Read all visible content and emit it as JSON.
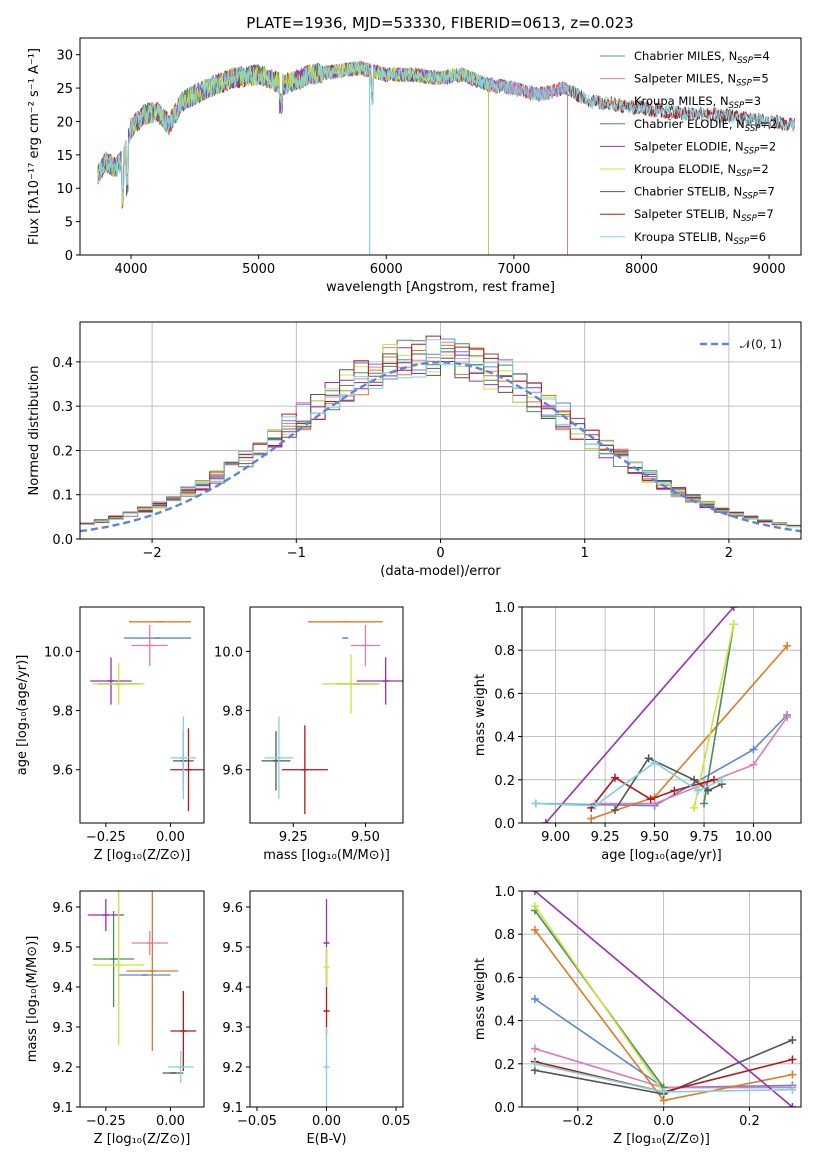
{
  "figure_title": "PLATE=1936, MJD=53330, FIBERID=0613, z=0.023",
  "colors": {
    "Chabrier MILES": "#5b86d6",
    "Salpeter MILES": "#e27bb7",
    "Kroupa MILES": "#e07b1f",
    "Chabrier ELODIE": "#4f8a55",
    "Salpeter ELODIE": "#9b2fb5",
    "Kroupa ELODIE": "#c7e43f",
    "Chabrier STELIB": "#555555",
    "Salpeter STELIB": "#b2191c",
    "Kroupa STELIB": "#7fd3de"
  },
  "chart_data": [
    {
      "id": "spectrum",
      "type": "line",
      "title": "PLATE=1936, MJD=53330, FIBERID=0613, z=0.023",
      "xlabel": "wavelength [Angstrom, rest frame]",
      "ylabel": "Flux [fλ10⁻¹⁷ erg cm⁻² s⁻¹ A⁻¹]",
      "xlim": [
        3600,
        9250
      ],
      "ylim": [
        0,
        32.5
      ],
      "xticks": [
        "4000",
        "5000",
        "6000",
        "7000",
        "8000",
        "9000"
      ],
      "yticks": [
        "0",
        "5",
        "10",
        "15",
        "20",
        "25",
        "30"
      ],
      "legend": "top-right",
      "continuum": [
        [
          3740,
          12
        ],
        [
          3800,
          14
        ],
        [
          3880,
          13
        ],
        [
          3950,
          15
        ],
        [
          4000,
          19
        ],
        [
          4100,
          21
        ],
        [
          4200,
          21.5
        ],
        [
          4300,
          19.5
        ],
        [
          4400,
          23
        ],
        [
          4600,
          25
        ],
        [
          4800,
          26.5
        ],
        [
          5000,
          27
        ],
        [
          5200,
          25.5
        ],
        [
          5400,
          27
        ],
        [
          5600,
          27.5
        ],
        [
          5800,
          28
        ],
        [
          6000,
          27
        ],
        [
          6200,
          27
        ],
        [
          6400,
          26.5
        ],
        [
          6600,
          27
        ],
        [
          6800,
          25.5
        ],
        [
          7000,
          25
        ],
        [
          7200,
          24
        ],
        [
          7400,
          25
        ],
        [
          7600,
          23
        ],
        [
          7800,
          22.5
        ],
        [
          8000,
          22
        ],
        [
          8200,
          21.5
        ],
        [
          8400,
          21
        ],
        [
          8600,
          21
        ],
        [
          8800,
          20.5
        ],
        [
          9000,
          20
        ],
        [
          9200,
          19.5
        ]
      ],
      "series": [
        {
          "name": "Chabrier MILES, N_SSP=4",
          "n": "4"
        },
        {
          "name": "Salpeter MILES, N_SSP=5",
          "n": "5"
        },
        {
          "name": "Kroupa MILES, N_SSP=3",
          "n": "3"
        },
        {
          "name": "Chabrier ELODIE, N_SSP=2",
          "n": "2"
        },
        {
          "name": "Salpeter ELODIE, N_SSP=2",
          "n": "2"
        },
        {
          "name": "Kroupa ELODIE, N_SSP=2",
          "n": "2"
        },
        {
          "name": "Chabrier STELIB, N_SSP=7",
          "n": "7"
        },
        {
          "name": "Salpeter STELIB, N_SSP=7",
          "n": "7"
        },
        {
          "name": "Kroupa STELIB, N_SSP=6",
          "n": "6"
        }
      ]
    },
    {
      "id": "residuals",
      "type": "line",
      "xlabel": "(data-model)/error",
      "ylabel": "Normed distribution",
      "xlim": [
        -2.5,
        2.5
      ],
      "ylim": [
        0,
        0.49
      ],
      "xticks": [
        "−2",
        "−1",
        "0",
        "1",
        "2"
      ],
      "yticks": [
        "0.0",
        "0.1",
        "0.2",
        "0.3",
        "0.4"
      ],
      "legend_label": "𝒩(0, 1)",
      "bin_width": 0.1,
      "grid": true
    },
    {
      "id": "age_vs_Z",
      "type": "scatter",
      "xlabel": "Z [log₁₀(Z/Z⊙)]",
      "ylabel": "age  [log₁₀(age/yr)]",
      "xlim": [
        -0.35,
        0.13
      ],
      "ylim": [
        9.42,
        10.15
      ],
      "xticks": [
        "−0.25",
        "0.00"
      ],
      "xtick_values": [
        -0.25,
        0.0
      ],
      "yticks": [
        "9.6",
        "9.8",
        "10.0"
      ],
      "ytick_values": [
        9.6,
        9.8,
        10.0
      ],
      "points": [
        {
          "series": "Chabrier MILES",
          "x": -0.05,
          "xerr": 0.13,
          "y": 10.045,
          "yerr": 0.0
        },
        {
          "series": "Salpeter MILES",
          "x": -0.08,
          "xerr": 0.07,
          "y": 10.02,
          "yerr": 0.07
        },
        {
          "series": "Kroupa MILES",
          "x": -0.04,
          "xerr": 0.12,
          "y": 10.1,
          "yerr": 0.0
        },
        {
          "series": "Chabrier ELODIE",
          "x": -0.2,
          "xerr": 0.08,
          "y": 9.89,
          "yerr": 0.0
        },
        {
          "series": "Salpeter ELODIE",
          "x": -0.23,
          "xerr": 0.08,
          "y": 9.9,
          "yerr": 0.08
        },
        {
          "series": "Kroupa ELODIE",
          "x": -0.2,
          "xerr": 0.1,
          "y": 9.89,
          "yerr": 0.07
        },
        {
          "series": "Chabrier STELIB",
          "x": 0.05,
          "xerr": 0.04,
          "y": 9.63,
          "yerr": 0.1
        },
        {
          "series": "Salpeter STELIB",
          "x": 0.07,
          "xerr": 0.07,
          "y": 9.6,
          "yerr": 0.14
        },
        {
          "series": "Kroupa STELIB",
          "x": 0.05,
          "xerr": 0.05,
          "y": 9.64,
          "yerr": 0.14
        }
      ]
    },
    {
      "id": "age_vs_mass",
      "type": "scatter",
      "xlabel": "mass [log₁₀(M/M⊙)]",
      "xlim": [
        9.1,
        9.63
      ],
      "ylim": [
        9.42,
        10.15
      ],
      "xticks": [
        "9.25",
        "9.50"
      ],
      "xtick_values": [
        9.25,
        9.5
      ],
      "yticks": [
        "9.6",
        "9.8",
        "10.0"
      ],
      "ytick_values": [
        9.6,
        9.8,
        10.0
      ],
      "points": [
        {
          "series": "Chabrier MILES",
          "x": 9.43,
          "xerr": 0.0,
          "y": 10.045,
          "yerr": 0.0
        },
        {
          "series": "Salpeter MILES",
          "x": 9.5,
          "xerr": 0.05,
          "y": 10.02,
          "yerr": 0.07
        },
        {
          "series": "Kroupa MILES",
          "x": 9.43,
          "xerr": 0.13,
          "y": 10.1,
          "yerr": 0.0
        },
        {
          "series": "Chabrier ELODIE",
          "x": 9.47,
          "xerr": 0.07,
          "y": 9.89,
          "yerr": 0.0
        },
        {
          "series": "Salpeter ELODIE",
          "x": 9.57,
          "xerr": 0.1,
          "y": 9.9,
          "yerr": 0.08
        },
        {
          "series": "Kroupa ELODIE",
          "x": 9.45,
          "xerr": 0.1,
          "y": 9.89,
          "yerr": 0.1
        },
        {
          "series": "Chabrier STELIB",
          "x": 9.19,
          "xerr": 0.05,
          "y": 9.63,
          "yerr": 0.1
        },
        {
          "series": "Salpeter STELIB",
          "x": 9.29,
          "xerr": 0.08,
          "y": 9.6,
          "yerr": 0.15
        },
        {
          "series": "Kroupa STELIB",
          "x": 9.2,
          "xerr": 0.05,
          "y": 9.64,
          "yerr": 0.14
        }
      ]
    },
    {
      "id": "weight_vs_age",
      "type": "line",
      "xlabel": "age  [log₁₀(age/yr)]",
      "ylabel": "mass weight",
      "xlim": [
        8.83,
        10.24
      ],
      "ylim": [
        0,
        1.0
      ],
      "xticks": [
        "9.00",
        "9.25",
        "9.50",
        "9.75",
        "10.00"
      ],
      "xtick_values": [
        9.0,
        9.25,
        9.5,
        9.75,
        10.0
      ],
      "yticks": [
        "0.0",
        "0.2",
        "0.4",
        "0.6",
        "0.8",
        "1.0"
      ],
      "ytick_values": [
        0,
        0.2,
        0.4,
        0.6,
        0.8,
        1.0
      ],
      "grid": true,
      "series": [
        {
          "key": "Chabrier MILES",
          "points": [
            [
              8.9,
              0.09
            ],
            [
              9.5,
              0.08
            ],
            [
              10.0,
              0.34
            ],
            [
              10.17,
              0.5
            ]
          ]
        },
        {
          "key": "Salpeter MILES",
          "points": [
            [
              9.2,
              0.09
            ],
            [
              9.5,
              0.09
            ],
            [
              9.75,
              0.18
            ],
            [
              10.0,
              0.27
            ],
            [
              10.17,
              0.49
            ]
          ]
        },
        {
          "key": "Kroupa MILES",
          "points": [
            [
              9.18,
              0.02
            ],
            [
              9.5,
              0.12
            ],
            [
              10.17,
              0.82
            ]
          ]
        },
        {
          "key": "Chabrier ELODIE",
          "points": [
            [
              9.75,
              0.09
            ],
            [
              9.9,
              0.92
            ]
          ]
        },
        {
          "key": "Salpeter ELODIE",
          "points": [
            [
              8.95,
              0.0
            ],
            [
              9.9,
              1.0
            ]
          ]
        },
        {
          "key": "Kroupa ELODIE",
          "points": [
            [
              9.7,
              0.07
            ],
            [
              9.9,
              0.92
            ]
          ]
        },
        {
          "key": "Chabrier STELIB",
          "points": [
            [
              9.3,
              0.06
            ],
            [
              9.47,
              0.3
            ],
            [
              9.7,
              0.2
            ],
            [
              9.77,
              0.15
            ],
            [
              9.84,
              0.18
            ]
          ]
        },
        {
          "key": "Salpeter STELIB",
          "points": [
            [
              9.18,
              0.07
            ],
            [
              9.3,
              0.21
            ],
            [
              9.48,
              0.11
            ],
            [
              9.6,
              0.15
            ],
            [
              9.8,
              0.2
            ]
          ]
        },
        {
          "key": "Kroupa STELIB",
          "points": [
            [
              8.9,
              0.09
            ],
            [
              9.2,
              0.08
            ],
            [
              9.5,
              0.28
            ],
            [
              9.72,
              0.15
            ],
            [
              9.84,
              0.2
            ]
          ]
        }
      ]
    },
    {
      "id": "mass_vs_Z",
      "type": "scatter",
      "xlabel": "Z [log₁₀(Z/Z⊙)]",
      "ylabel": "mass [log₁₀(M/M⊙)]",
      "xlim": [
        -0.35,
        0.13
      ],
      "ylim": [
        9.1,
        9.64
      ],
      "xticks": [
        "−0.25",
        "0.00"
      ],
      "xtick_values": [
        -0.25,
        0.0
      ],
      "yticks": [
        "9.1",
        "9.2",
        "9.3",
        "9.4",
        "9.5",
        "9.6"
      ],
      "ytick_values": [
        9.1,
        9.2,
        9.3,
        9.4,
        9.5,
        9.6
      ],
      "points": [
        {
          "series": "Chabrier MILES",
          "x": -0.1,
          "xerr": 0.1,
          "y": 9.43,
          "yerr": 0.0
        },
        {
          "series": "Salpeter MILES",
          "x": -0.08,
          "xerr": 0.07,
          "y": 9.51,
          "yerr": 0.03
        },
        {
          "series": "Kroupa MILES",
          "x": -0.07,
          "xerr": 0.1,
          "y": 9.44,
          "yerr": 0.2
        },
        {
          "series": "Chabrier ELODIE",
          "x": -0.22,
          "xerr": 0.08,
          "y": 9.47,
          "yerr": 0.12
        },
        {
          "series": "Salpeter ELODIE",
          "x": -0.25,
          "xerr": 0.07,
          "y": 9.58,
          "yerr": 0.04
        },
        {
          "series": "Kroupa ELODIE",
          "x": -0.2,
          "xerr": 0.1,
          "y": 9.455,
          "yerr": 0.2
        },
        {
          "series": "Chabrier STELIB",
          "x": 0.01,
          "xerr": 0.04,
          "y": 9.185,
          "yerr": 0.0
        },
        {
          "series": "Salpeter STELIB",
          "x": 0.05,
          "xerr": 0.05,
          "y": 9.29,
          "yerr": 0.1
        },
        {
          "series": "Kroupa STELIB",
          "x": 0.04,
          "xerr": 0.05,
          "y": 9.2,
          "yerr": 0.04
        }
      ]
    },
    {
      "id": "mass_vs_ebv",
      "type": "scatter",
      "xlabel": "E(B-V)",
      "xlim": [
        -0.055,
        0.055
      ],
      "ylim": [
        9.1,
        9.64
      ],
      "xticks": [
        "−0.05",
        "0.00",
        "0.05"
      ],
      "xtick_values": [
        -0.05,
        0.0,
        0.05
      ],
      "yticks": [
        "9.1",
        "9.2",
        "9.3",
        "9.4",
        "9.5",
        "9.6"
      ],
      "ytick_values": [
        9.1,
        9.2,
        9.3,
        9.4,
        9.5,
        9.6
      ],
      "points": [
        {
          "series": "Salpeter ELODIE",
          "x": 0.0,
          "xerr": 0.0,
          "y": 9.51,
          "yerr": 0.11
        },
        {
          "series": "Kroupa ELODIE",
          "x": 0.0,
          "xerr": 0.0,
          "y": 9.45,
          "yerr": 0.05
        },
        {
          "series": "Salpeter STELIB",
          "x": 0.0,
          "xerr": 0.0,
          "y": 9.34,
          "yerr": 0.06
        },
        {
          "series": "Kroupa STELIB",
          "x": 0.0,
          "xerr": 0.0,
          "y": 9.2,
          "yerr": 0.1
        }
      ]
    },
    {
      "id": "weight_vs_Z",
      "type": "line",
      "xlabel": "Z [log₁₀(Z/Z⊙)]",
      "ylabel": "mass weight",
      "xlim": [
        -0.33,
        0.32
      ],
      "ylim": [
        0,
        1.0
      ],
      "xticks": [
        "−0.2",
        "0.0",
        "0.2"
      ],
      "xtick_values": [
        -0.2,
        0.0,
        0.2
      ],
      "yticks": [
        "0.0",
        "0.2",
        "0.4",
        "0.6",
        "0.8",
        "1.0"
      ],
      "ytick_values": [
        0,
        0.2,
        0.4,
        0.6,
        0.8,
        1.0
      ],
      "grid": true,
      "series": [
        {
          "key": "Chabrier MILES",
          "points": [
            [
              -0.3,
              0.5
            ],
            [
              0.0,
              0.09
            ],
            [
              0.3,
              0.1
            ]
          ]
        },
        {
          "key": "Salpeter MILES",
          "points": [
            [
              -0.3,
              0.27
            ],
            [
              0.0,
              0.09
            ],
            [
              0.3,
              0.09
            ]
          ]
        },
        {
          "key": "Kroupa MILES",
          "points": [
            [
              -0.3,
              0.82
            ],
            [
              0.0,
              0.03
            ],
            [
              0.3,
              0.15
            ]
          ]
        },
        {
          "key": "Chabrier ELODIE",
          "points": [
            [
              -0.3,
              0.91
            ],
            [
              0.0,
              0.09
            ]
          ]
        },
        {
          "key": "Salpeter ELODIE",
          "points": [
            [
              -0.3,
              1.0
            ],
            [
              0.3,
              0.0
            ]
          ]
        },
        {
          "key": "Kroupa ELODIE",
          "points": [
            [
              -0.3,
              0.93
            ],
            [
              0.0,
              0.07
            ]
          ]
        },
        {
          "key": "Chabrier STELIB",
          "points": [
            [
              -0.3,
              0.17
            ],
            [
              0.0,
              0.06
            ],
            [
              0.3,
              0.31
            ]
          ]
        },
        {
          "key": "Salpeter STELIB",
          "points": [
            [
              -0.3,
              0.21
            ],
            [
              0.0,
              0.07
            ],
            [
              0.3,
              0.22
            ]
          ]
        },
        {
          "key": "Kroupa STELIB",
          "points": [
            [
              -0.3,
              0.2
            ],
            [
              0.0,
              0.07
            ],
            [
              0.3,
              0.08
            ]
          ]
        }
      ]
    }
  ]
}
